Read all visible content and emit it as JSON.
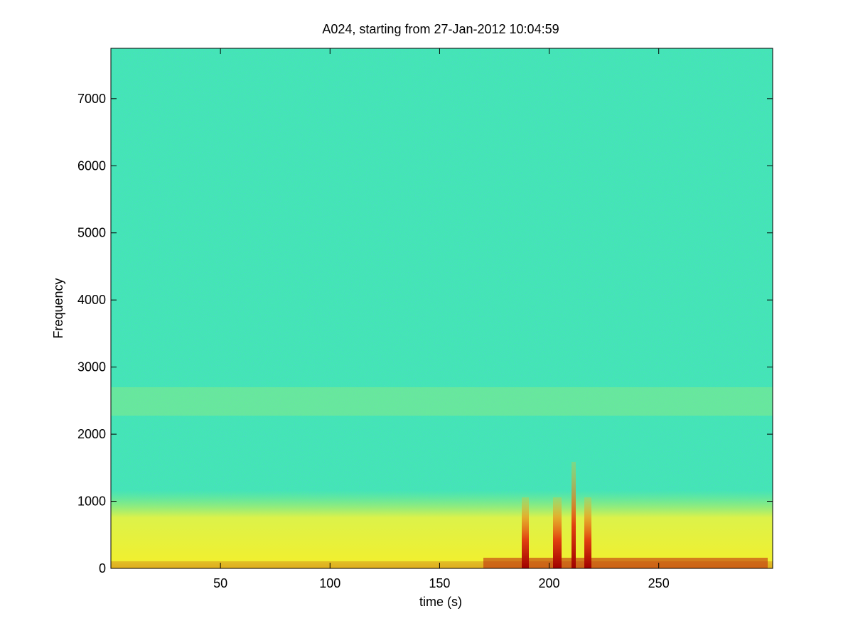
{
  "chart_data": {
    "type": "spectrogram",
    "title": "A024, starting from 27-Jan-2012 10:04:59",
    "x_label": "time (s)",
    "y_label": "Frequency",
    "xlim": [
      0,
      302
    ],
    "xticks": [
      50,
      100,
      150,
      200,
      250
    ],
    "ylim": [
      0,
      7750
    ],
    "yticks": [
      0,
      1000,
      2000,
      3000,
      4000,
      5000,
      6000,
      7000
    ]
  }
}
